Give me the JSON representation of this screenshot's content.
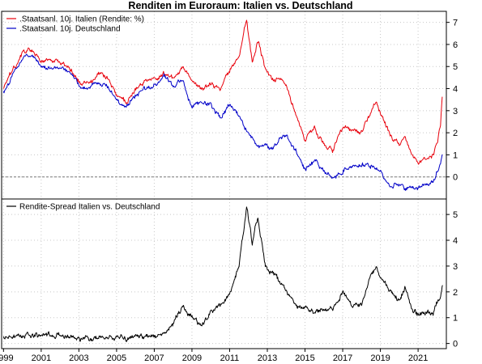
{
  "title": "Renditen im Euroraum: Italien vs. Deutschland",
  "colors": {
    "italy": "#e8000b",
    "germany": "#0000c8",
    "spread": "#000000",
    "grid": "#c8c8c8",
    "zero_line": "#7a7a7a"
  },
  "chart_data": [
    {
      "type": "line",
      "title": "Renditen im Euroraum: Italien vs. Deutschland",
      "xlabel": "",
      "ylabel": "",
      "xlim": [
        1998.9,
        2022.5
      ],
      "ylim": [
        -1.0,
        7.5
      ],
      "y_ticks": [
        0,
        1,
        2,
        3,
        4,
        5,
        6,
        7
      ],
      "y_tick_labels": [
        "0",
        "1",
        "2",
        "3",
        "4",
        "5",
        "6",
        "7"
      ],
      "zero_line": true,
      "grid": true,
      "legend_position": "top-left",
      "series": [
        {
          "name": ".Staatsanl. 10j. Italien (Rendite: %)",
          "color": "#e8000b",
          "x": [
            1999.0,
            1999.5,
            2000.0,
            2000.5,
            2001.0,
            2001.5,
            2002.0,
            2002.5,
            2003.0,
            2003.5,
            2004.0,
            2004.5,
            2005.0,
            2005.5,
            2006.0,
            2006.5,
            2007.0,
            2007.5,
            2008.0,
            2008.5,
            2009.0,
            2009.5,
            2010.0,
            2010.5,
            2011.0,
            2011.5,
            2011.9,
            2012.2,
            2012.5,
            2012.9,
            2013.3,
            2013.7,
            2014.0,
            2014.5,
            2015.0,
            2015.5,
            2016.0,
            2016.5,
            2017.0,
            2017.5,
            2018.0,
            2018.4,
            2018.8,
            2019.0,
            2019.5,
            2020.0,
            2020.3,
            2020.7,
            2021.0,
            2021.5,
            2021.8,
            2022.0,
            2022.2,
            2022.3
          ],
          "y": [
            4.0,
            4.8,
            5.6,
            5.8,
            5.3,
            5.3,
            5.2,
            5.0,
            4.3,
            4.2,
            4.6,
            4.5,
            3.7,
            3.4,
            3.9,
            4.3,
            4.4,
            4.7,
            4.5,
            5.0,
            4.4,
            4.0,
            4.2,
            4.0,
            4.8,
            5.5,
            7.2,
            5.2,
            6.2,
            4.9,
            4.4,
            4.5,
            4.1,
            2.9,
            1.7,
            2.2,
            1.5,
            1.2,
            2.2,
            2.1,
            2.0,
            2.8,
            3.5,
            2.8,
            1.9,
            1.4,
            1.8,
            1.0,
            0.6,
            0.8,
            1.0,
            1.5,
            2.5,
            4.0
          ]
        },
        {
          "name": ".Staatsanl. 10j. Deutschland",
          "color": "#0000c8",
          "x": [
            1999.0,
            1999.5,
            2000.0,
            2000.5,
            2001.0,
            2001.5,
            2002.0,
            2002.5,
            2003.0,
            2003.5,
            2004.0,
            2004.5,
            2005.0,
            2005.5,
            2006.0,
            2006.5,
            2007.0,
            2007.5,
            2008.0,
            2008.5,
            2009.0,
            2009.5,
            2010.0,
            2010.5,
            2011.0,
            2011.5,
            2011.9,
            2012.2,
            2012.5,
            2012.9,
            2013.3,
            2013.7,
            2014.0,
            2014.5,
            2015.0,
            2015.5,
            2016.0,
            2016.5,
            2017.0,
            2017.5,
            2018.0,
            2018.4,
            2018.8,
            2019.0,
            2019.5,
            2020.0,
            2020.3,
            2020.7,
            2021.0,
            2021.5,
            2021.8,
            2022.0,
            2022.2,
            2022.3
          ],
          "y": [
            3.8,
            4.6,
            5.4,
            5.5,
            5.0,
            4.9,
            5.0,
            4.8,
            4.1,
            4.0,
            4.3,
            4.1,
            3.5,
            3.2,
            3.7,
            4.0,
            4.1,
            4.6,
            4.1,
            4.4,
            3.2,
            3.4,
            3.3,
            2.7,
            3.3,
            2.8,
            2.0,
            1.8,
            1.4,
            1.4,
            1.3,
            1.8,
            1.8,
            1.2,
            0.3,
            0.8,
            0.3,
            -0.1,
            0.3,
            0.5,
            0.6,
            0.5,
            0.4,
            0.2,
            -0.4,
            -0.3,
            -0.5,
            -0.5,
            -0.5,
            -0.3,
            -0.2,
            0.2,
            0.6,
            1.2
          ]
        }
      ]
    },
    {
      "type": "line",
      "xlabel": "",
      "ylabel": "",
      "xlim": [
        1998.9,
        2022.5
      ],
      "ylim": [
        -0.2,
        5.6
      ],
      "y_ticks": [
        0,
        1,
        2,
        3,
        4,
        5
      ],
      "y_tick_labels": [
        "0",
        "1",
        "2",
        "3",
        "4",
        "5"
      ],
      "x_ticks": [
        1999,
        2001,
        2003,
        2005,
        2007,
        2009,
        2011,
        2013,
        2015,
        2017,
        2019,
        2021
      ],
      "x_tick_labels": [
        "1999",
        "2001",
        "2003",
        "2005",
        "2007",
        "2009",
        "2011",
        "2013",
        "2015",
        "2017",
        "2019",
        "2021"
      ],
      "grid": true,
      "legend_position": "top-left",
      "series": [
        {
          "name": "Rendite-Spread Italien vs. Deutschland",
          "color": "#000000",
          "x": [
            1999.0,
            1999.5,
            2000.0,
            2000.5,
            2001.0,
            2001.5,
            2002.0,
            2002.5,
            2003.0,
            2003.5,
            2004.0,
            2004.5,
            2005.0,
            2005.5,
            2006.0,
            2006.5,
            2007.0,
            2007.5,
            2008.0,
            2008.5,
            2009.0,
            2009.5,
            2010.0,
            2010.5,
            2011.0,
            2011.5,
            2011.9,
            2012.2,
            2012.5,
            2012.9,
            2013.3,
            2013.7,
            2014.0,
            2014.5,
            2015.0,
            2015.5,
            2016.0,
            2016.5,
            2017.0,
            2017.5,
            2018.0,
            2018.4,
            2018.8,
            2019.0,
            2019.5,
            2020.0,
            2020.3,
            2020.7,
            2021.0,
            2021.5,
            2021.8,
            2022.0,
            2022.2,
            2022.3
          ],
          "y": [
            0.2,
            0.25,
            0.3,
            0.35,
            0.35,
            0.35,
            0.3,
            0.25,
            0.2,
            0.2,
            0.2,
            0.25,
            0.2,
            0.2,
            0.25,
            0.3,
            0.3,
            0.35,
            0.8,
            1.4,
            1.0,
            0.7,
            1.2,
            1.5,
            1.9,
            3.0,
            5.3,
            3.9,
            4.9,
            3.0,
            2.7,
            2.4,
            2.0,
            1.5,
            1.4,
            1.2,
            1.3,
            1.4,
            2.0,
            1.5,
            1.5,
            2.5,
            3.0,
            2.6,
            2.1,
            1.6,
            2.2,
            1.3,
            1.1,
            1.2,
            1.2,
            1.6,
            1.9,
            2.3
          ]
        }
      ]
    }
  ]
}
